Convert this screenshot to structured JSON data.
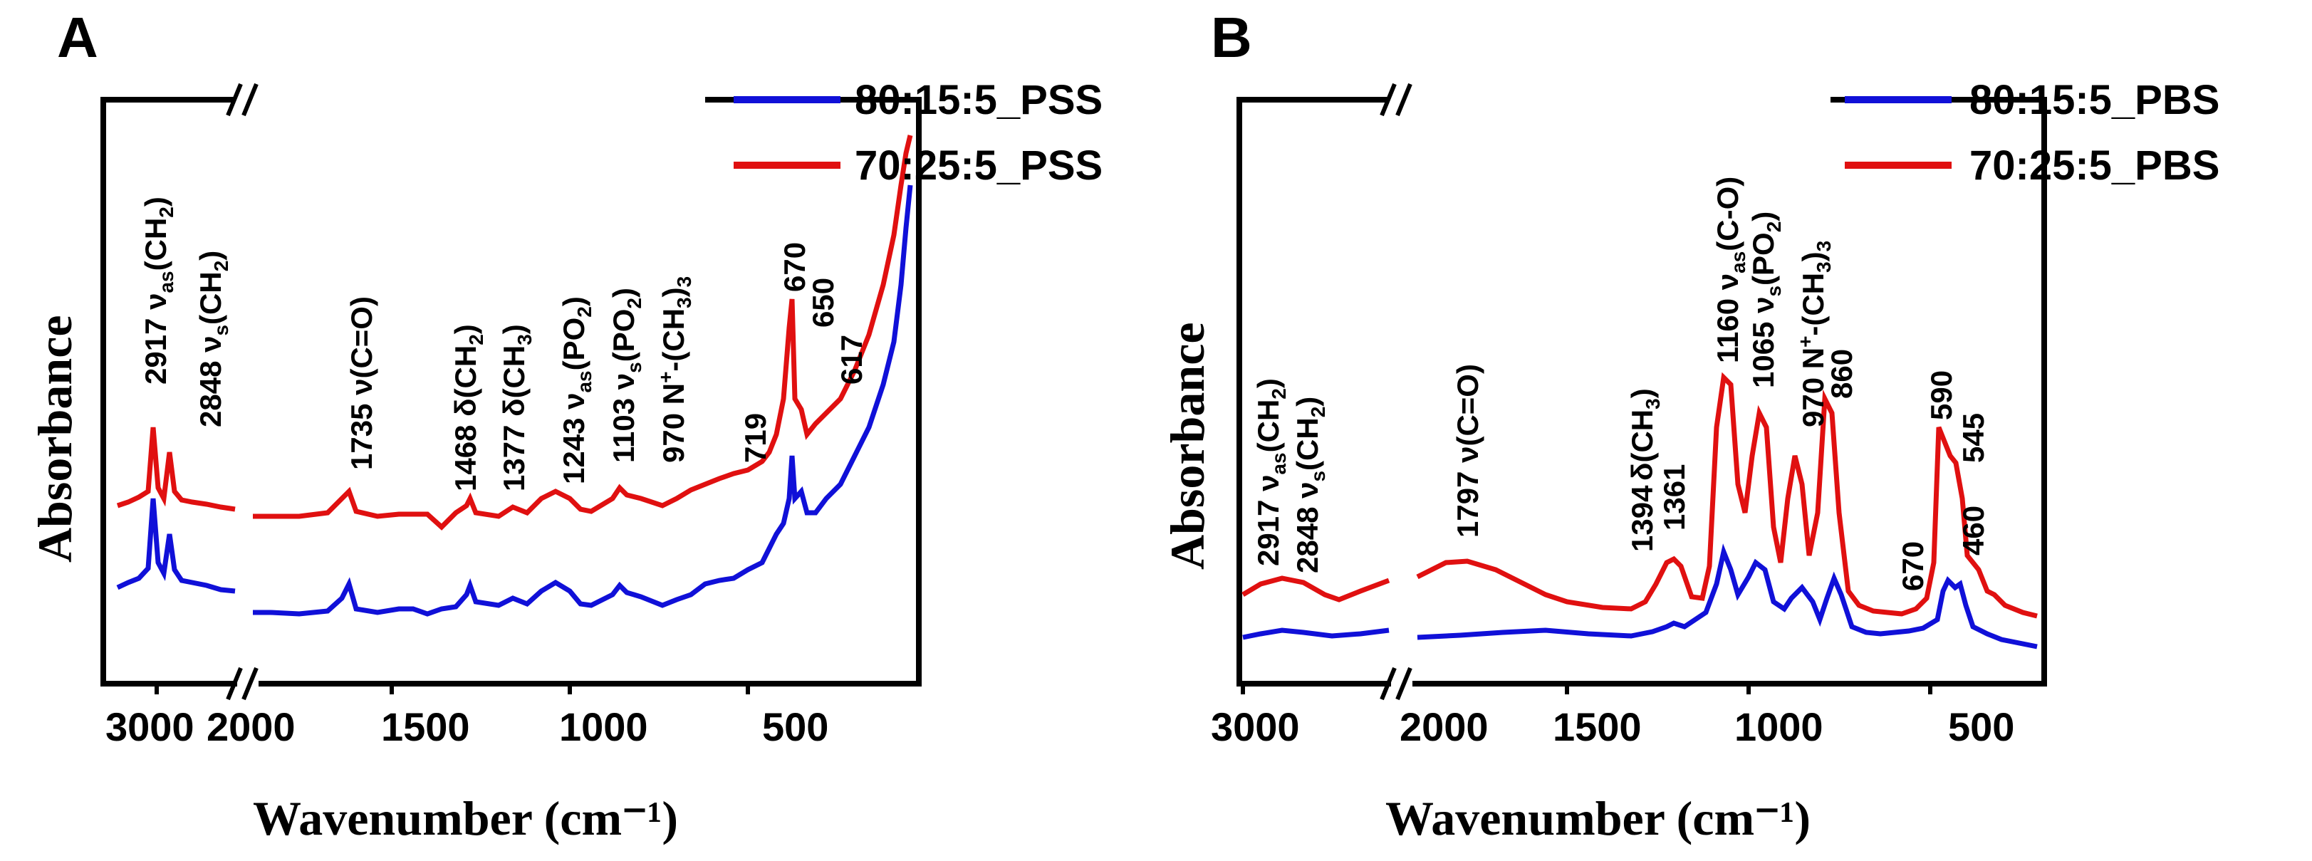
{
  "chart_data": [
    {
      "panel": "A",
      "type": "line",
      "xlabel": "Wavenumber (cm⁻¹)",
      "ylabel": "Absorbance",
      "x_axis": "reversed, broken between 2000 and 2800",
      "xticks": [
        "3000",
        "2000",
        "1500",
        "1000",
        "500"
      ],
      "series": [
        {
          "name": "80:15:5_PSS",
          "color": "#1010d8"
        },
        {
          "name": "70:25:5_PSS",
          "color": "#e01010"
        }
      ],
      "annotations": [
        {
          "main": "2917 ν",
          "sub": "as",
          "paren": "(CH",
          "sub2": "2",
          "close": ")"
        },
        {
          "main": "2848 ν",
          "sub": "s",
          "paren": "(CH",
          "sub2": "2",
          "close": ")"
        },
        {
          "main": "1735 ν(C=O)"
        },
        {
          "main": "1468 δ(CH",
          "sub2": "2",
          "close": ")"
        },
        {
          "main": "1377 δ(CH",
          "sub2": "3",
          "close": ")"
        },
        {
          "main": "1243 ν",
          "sub": "as",
          "paren": "(PO",
          "sub2": "2",
          "close": ")"
        },
        {
          "main": "1103 ν",
          "sub": "s",
          "paren": "(PO",
          "sub2": "2",
          "close": ")"
        },
        {
          "main": "970 N",
          "sup": "+",
          "paren": "-(CH",
          "sub2": "3",
          "close": ")",
          "sub3": "3"
        },
        {
          "main": "719"
        },
        {
          "main": "670"
        },
        {
          "main": "650"
        },
        {
          "main": "617"
        }
      ],
      "peaks_cm1": [
        2917,
        2848,
        1735,
        1468,
        1377,
        1243,
        1103,
        970,
        719,
        670,
        650,
        617
      ]
    },
    {
      "panel": "B",
      "type": "line",
      "xlabel": "Wavenumber (cm⁻¹)",
      "ylabel": "Absorbance",
      "x_axis": "reversed, broken between 2000 and 2800",
      "xticks": [
        "3000",
        "2000",
        "1500",
        "1000",
        "500"
      ],
      "series": [
        {
          "name": "80:15:5_PBS",
          "color": "#1010d8"
        },
        {
          "name": "70:25:5_PBS",
          "color": "#e01010"
        }
      ],
      "annotations": [
        {
          "main": "2917 ν",
          "sub": "as",
          "paren": "(CH",
          "sub2": "2",
          "close": ")"
        },
        {
          "main": "2848 ν",
          "sub": "s",
          "paren": "(CH",
          "sub2": "2",
          "close": ")"
        },
        {
          "main": "1797   ν(C=O)"
        },
        {
          "main": "δ(CH",
          "sub2": "3",
          "close": ")"
        },
        {
          "main": "1394"
        },
        {
          "main": "1361"
        },
        {
          "main": "1160 ν",
          "sub": "as",
          "paren": "(C-O)"
        },
        {
          "main": "1065 ν",
          "sub": "s",
          "paren": "(PO",
          "sub2": "2",
          "close": ")"
        },
        {
          "main": "970 N",
          "sup": "+",
          "paren": "-(CH",
          "sub2": "3",
          "close": ")",
          "sub3": "3"
        },
        {
          "main": "860"
        },
        {
          "main": "670"
        },
        {
          "main": "590"
        },
        {
          "main": "545"
        },
        {
          "main": "460"
        }
      ],
      "peaks_cm1": [
        2917,
        2848,
        1797,
        1394,
        1361,
        1160,
        1065,
        970,
        860,
        670,
        590,
        545,
        460
      ]
    }
  ]
}
